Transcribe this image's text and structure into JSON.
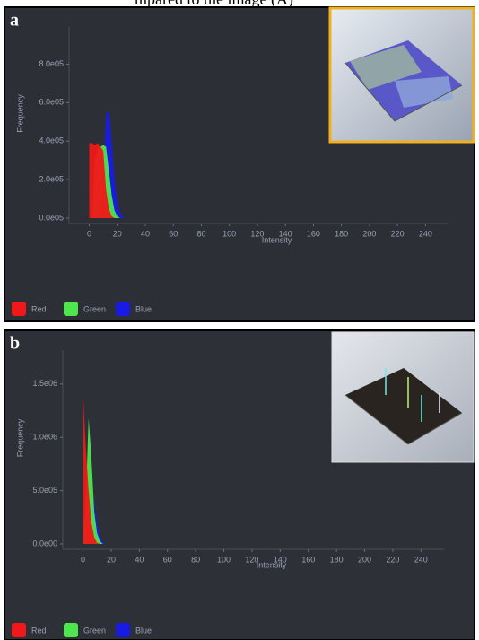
{
  "caption": "mpared to the image (A)",
  "chart_data": [
    {
      "type": "area",
      "label": "a",
      "xlabel": "Intensity",
      "ylabel": "Frequency",
      "x": [
        0,
        2,
        4,
        6,
        8,
        10,
        12,
        14,
        16,
        18,
        20,
        22,
        24,
        26
      ],
      "series": [
        {
          "name": "Blue",
          "color": "#1a1ae6",
          "values": [
            0,
            0,
            0,
            0,
            0,
            200000,
            540000,
            560000,
            400000,
            200000,
            80000,
            30000,
            5000,
            0
          ]
        },
        {
          "name": "Green",
          "color": "#4de64d",
          "values": [
            0,
            0,
            300000,
            360000,
            370000,
            380000,
            370000,
            250000,
            120000,
            40000,
            10000,
            0,
            0,
            0
          ]
        },
        {
          "name": "Red",
          "color": "#f01818",
          "values": [
            390000,
            390000,
            380000,
            390000,
            370000,
            350000,
            150000,
            50000,
            10000,
            0,
            0,
            0,
            0,
            0
          ]
        }
      ],
      "xlim": [
        -8,
        250
      ],
      "xticks": [
        0,
        20,
        40,
        60,
        80,
        100,
        120,
        140,
        160,
        180,
        200,
        220,
        240
      ],
      "ylim": [
        0,
        900000
      ],
      "yticks": [
        {
          "value": 0,
          "label": "0.0e05"
        },
        {
          "value": 200000,
          "label": "2.0e05"
        },
        {
          "value": 400000,
          "label": "4.0e05"
        },
        {
          "value": 600000,
          "label": "6.0e05"
        },
        {
          "value": 800000,
          "label": "8.0e05"
        }
      ],
      "legend": "bottom-left"
    },
    {
      "type": "area",
      "label": "b",
      "xlabel": "Intensity",
      "ylabel": "Frequency",
      "x": [
        0,
        2,
        4,
        6,
        8,
        10,
        12,
        14,
        16,
        18
      ],
      "series": [
        {
          "name": "Blue",
          "color": "#1a1ae6",
          "values": [
            0,
            0,
            300000,
            500000,
            400000,
            200000,
            80000,
            20000,
            0,
            0
          ]
        },
        {
          "name": "Green",
          "color": "#4de64d",
          "values": [
            0,
            400000,
            1180000,
            800000,
            300000,
            100000,
            30000,
            0,
            0,
            0
          ]
        },
        {
          "name": "Red",
          "color": "#f01818",
          "values": [
            1430000,
            900000,
            500000,
            200000,
            60000,
            10000,
            0,
            0,
            0,
            0
          ]
        }
      ],
      "xlim": [
        -8,
        250
      ],
      "xticks": [
        0,
        20,
        40,
        60,
        80,
        100,
        120,
        140,
        160,
        180,
        200,
        220,
        240
      ],
      "ylim": [
        0,
        1650000
      ],
      "yticks": [
        {
          "value": 0,
          "label": "0.0e00"
        },
        {
          "value": 500000,
          "label": "5.0e05"
        },
        {
          "value": 1000000,
          "label": "1.0e06"
        },
        {
          "value": 1500000,
          "label": "1.5e06"
        }
      ],
      "legend": "bottom-left"
    }
  ]
}
